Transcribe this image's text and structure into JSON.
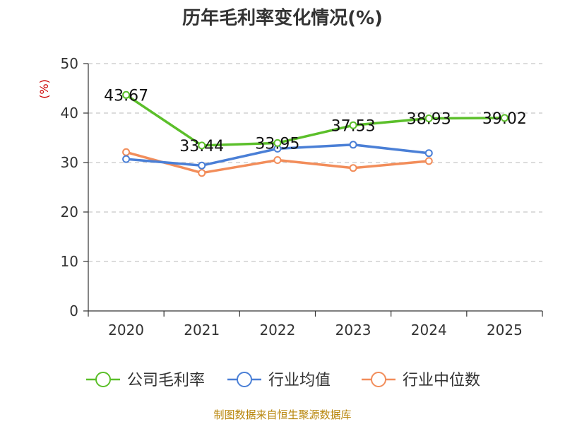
{
  "chart_data": {
    "type": "line",
    "title": "历年毛利率变化情况(%)",
    "ylabel": "(%)",
    "ylim": [
      0,
      50
    ],
    "yticks": [
      0,
      10,
      20,
      30,
      40,
      50
    ],
    "categories": [
      "2020",
      "2021",
      "2022",
      "2023",
      "2024",
      "2025"
    ],
    "grid": true,
    "legend_position": "bottom",
    "series": [
      {
        "name": "公司毛利率",
        "color": "#5bbf2a",
        "values": [
          43.67,
          33.44,
          33.95,
          37.53,
          38.93,
          39.02
        ],
        "labels": [
          "43.67",
          "33.44",
          "33.95",
          "37.53",
          "38.93",
          "39.02"
        ]
      },
      {
        "name": "行业均值",
        "color": "#4a7fd6",
        "values": [
          30.7,
          29.4,
          32.8,
          33.6,
          31.9,
          null
        ],
        "labels": []
      },
      {
        "name": "行业中位数",
        "color": "#f28d5a",
        "values": [
          32.1,
          27.9,
          30.5,
          28.9,
          30.3,
          null
        ],
        "labels": []
      }
    ],
    "source": "制图数据来自恒生聚源数据库"
  }
}
